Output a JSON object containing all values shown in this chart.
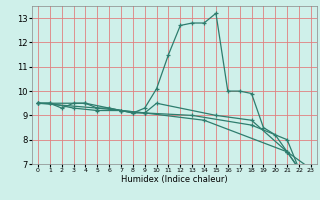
{
  "title": "",
  "xlabel": "Humidex (Indice chaleur)",
  "bg_color": "#cff0ea",
  "grid_color": "#e08080",
  "line_color": "#2e7d6e",
  "lines1": [
    [
      0,
      9.5
    ],
    [
      1,
      9.5
    ],
    [
      2,
      9.3
    ],
    [
      3,
      9.5
    ],
    [
      4,
      9.5
    ],
    [
      5,
      9.3
    ],
    [
      6,
      9.3
    ],
    [
      7,
      9.2
    ],
    [
      8,
      9.1
    ],
    [
      9,
      9.3
    ],
    [
      10,
      10.1
    ],
    [
      11,
      11.5
    ],
    [
      12,
      12.7
    ],
    [
      13,
      12.8
    ],
    [
      14,
      12.8
    ],
    [
      15,
      13.2
    ],
    [
      16,
      10.0
    ],
    [
      17,
      10.0
    ],
    [
      18,
      9.9
    ],
    [
      19,
      8.5
    ],
    [
      20,
      8.2
    ],
    [
      21,
      7.5
    ],
    [
      22,
      6.8
    ],
    [
      23,
      6.8
    ]
  ],
  "lines2": [
    [
      0,
      9.5
    ],
    [
      1,
      9.5
    ],
    [
      3,
      9.3
    ],
    [
      5,
      9.2
    ],
    [
      7,
      9.2
    ],
    [
      8,
      9.1
    ],
    [
      9,
      9.1
    ],
    [
      10,
      9.5
    ],
    [
      15,
      9.0
    ],
    [
      18,
      8.8
    ],
    [
      21,
      7.5
    ],
    [
      22,
      6.8
    ],
    [
      23,
      6.8
    ]
  ],
  "lines3": [
    [
      0,
      9.5
    ],
    [
      4,
      9.5
    ],
    [
      7,
      9.2
    ],
    [
      9,
      9.1
    ],
    [
      13,
      9.0
    ],
    [
      18,
      8.6
    ],
    [
      21,
      8.0
    ],
    [
      22,
      6.8
    ],
    [
      23,
      6.8
    ]
  ],
  "lines4": [
    [
      0,
      9.5
    ],
    [
      5,
      9.3
    ],
    [
      9,
      9.1
    ],
    [
      14,
      8.8
    ],
    [
      21,
      7.5
    ],
    [
      23,
      6.8
    ]
  ],
  "xlim": [
    -0.5,
    23.5
  ],
  "ylim": [
    7,
    13.5
  ],
  "yticks": [
    7,
    8,
    9,
    10,
    11,
    12,
    13
  ],
  "xticks": [
    0,
    1,
    2,
    3,
    4,
    5,
    6,
    7,
    8,
    9,
    10,
    11,
    12,
    13,
    14,
    15,
    16,
    17,
    18,
    19,
    20,
    21,
    22,
    23
  ]
}
